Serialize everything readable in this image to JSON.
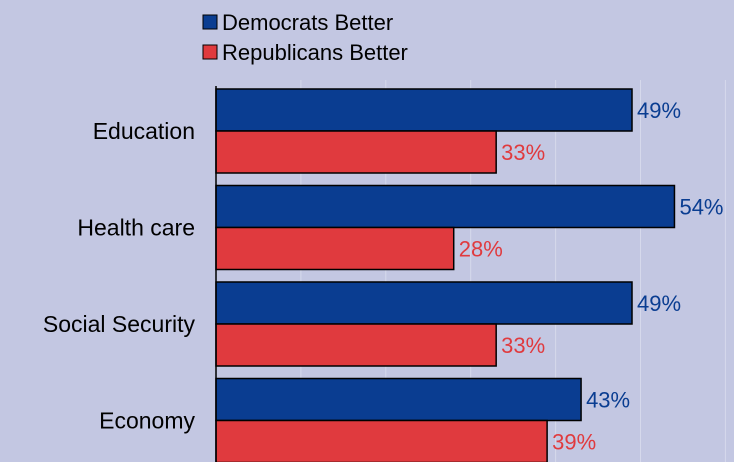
{
  "chart_data": {
    "type": "bar",
    "orientation": "horizontal",
    "categories": [
      "Education",
      "Health care",
      "Social Security",
      "Economy"
    ],
    "series": [
      {
        "name": "Democrats Better",
        "values": [
          49,
          54,
          49,
          43
        ],
        "color": "#0a3d91"
      },
      {
        "name": "Republicans Better",
        "values": [
          33,
          28,
          33,
          39
        ],
        "color": "#e03a3e"
      }
    ],
    "value_suffix": "%",
    "xlim": [
      0,
      60
    ],
    "legend_position": "top-left",
    "grid": true
  }
}
